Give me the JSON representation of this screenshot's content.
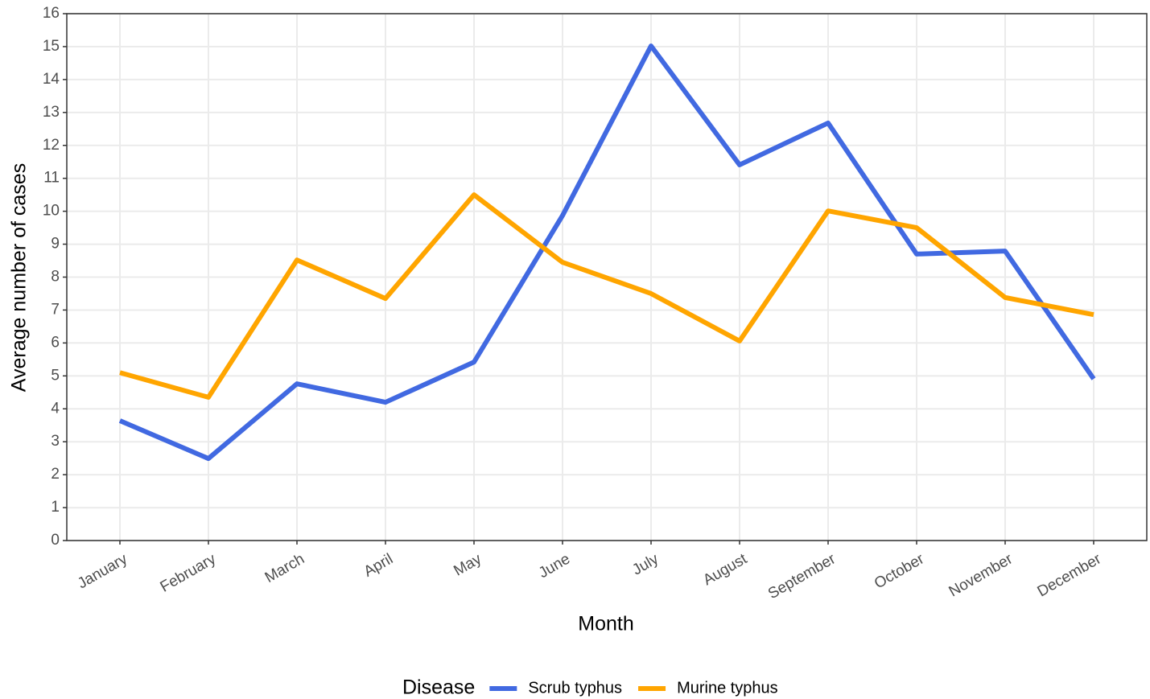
{
  "chart_data": {
    "type": "line",
    "x_label": "Month",
    "y_label": "Average number of cases",
    "categories": [
      "January",
      "February",
      "March",
      "April",
      "May",
      "June",
      "July",
      "August",
      "September",
      "October",
      "November",
      "December"
    ],
    "series": [
      {
        "name": "Scrub typhus",
        "color": "#4169e1",
        "values": [
          3.64,
          2.49,
          4.76,
          4.2,
          5.42,
          9.87,
          15.02,
          11.41,
          12.68,
          8.7,
          8.79,
          4.91
        ]
      },
      {
        "name": "Murine typhus",
        "color": "#ffa500",
        "values": [
          5.1,
          4.35,
          8.52,
          7.35,
          10.5,
          8.45,
          7.5,
          6.06,
          10.01,
          9.5,
          7.38,
          6.86
        ]
      }
    ],
    "legend_title": "Disease",
    "legend_position": "bottom",
    "ylim": [
      0,
      16
    ],
    "yticks": [
      0,
      1,
      2,
      3,
      4,
      5,
      6,
      7,
      8,
      9,
      10,
      11,
      12,
      13,
      14,
      15,
      16
    ],
    "grid": true
  }
}
